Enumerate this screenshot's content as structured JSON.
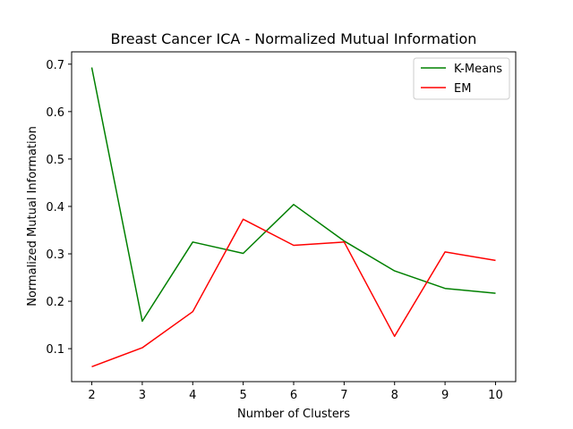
{
  "chart_data": {
    "type": "line",
    "title": "Breast Cancer ICA - Normalized Mutual Information",
    "xlabel": "Number of Clusters",
    "ylabel": "Normalized Mutual Information",
    "x": [
      2,
      3,
      4,
      5,
      6,
      7,
      8,
      9,
      10
    ],
    "x_ticks": [
      "2",
      "3",
      "4",
      "5",
      "6",
      "7",
      "8",
      "9",
      "10"
    ],
    "y_ticks": [
      "0.1",
      "0.2",
      "0.3",
      "0.4",
      "0.5",
      "0.6",
      "0.7"
    ],
    "xlim": [
      1.6,
      10.4
    ],
    "ylim": [
      0.0305,
      0.726
    ],
    "grid": false,
    "legend_position": "upper right",
    "series": [
      {
        "name": "K-Means",
        "color": "#008000",
        "values": [
          0.693,
          0.158,
          0.325,
          0.301,
          0.404,
          0.327,
          0.264,
          0.227,
          0.217
        ]
      },
      {
        "name": "EM",
        "color": "#ff0000",
        "values": [
          0.062,
          0.102,
          0.178,
          0.373,
          0.318,
          0.325,
          0.126,
          0.304,
          0.286
        ]
      }
    ]
  }
}
